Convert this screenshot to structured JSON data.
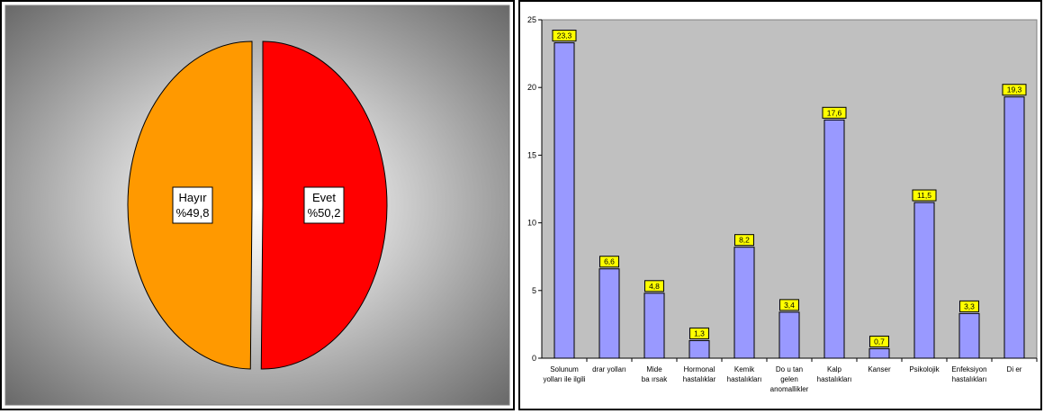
{
  "chart_data": [
    {
      "type": "pie",
      "categories": [
        "Hayır",
        "Evet"
      ],
      "values": [
        49.8,
        50.2
      ],
      "value_labels": [
        "%49,8",
        "%50,2"
      ],
      "colors": [
        "#FF9900",
        "#FF0000"
      ],
      "background": "radial gray gradient"
    },
    {
      "type": "bar",
      "categories": [
        [
          "Solunum",
          "yolları ile ilgili"
        ],
        [
          "drar yolları"
        ],
        [
          "Mide",
          "ba ırsak"
        ],
        [
          "Hormonal",
          "hastalıklar"
        ],
        [
          "Kemik",
          "hastalıkları"
        ],
        [
          "Do u tan",
          "gelen",
          "anomallikler"
        ],
        [
          "Kalp",
          "hastalıkları"
        ],
        [
          "Kanser"
        ],
        [
          "Psikolojik"
        ],
        [
          "Enfeksiyon",
          "hastalıkları"
        ],
        [
          "Di er"
        ]
      ],
      "values": [
        23.3,
        6.6,
        4.8,
        1.3,
        8.2,
        3.4,
        17.6,
        0.7,
        11.5,
        3.3,
        19.3
      ],
      "value_labels": [
        "23,3",
        "6,6",
        "4,8",
        "1,3",
        "8,2",
        "3,4",
        "17,6",
        "0,7",
        "11,5",
        "3,3",
        "19,3"
      ],
      "yticks": [
        "0",
        "5",
        "10",
        "15",
        "20",
        "25"
      ],
      "ylim": [
        0,
        25
      ],
      "bar_color": "#9999FF",
      "plot_background": "#C0C0C0",
      "label_background": "#FFFF00",
      "grid": false
    }
  ]
}
